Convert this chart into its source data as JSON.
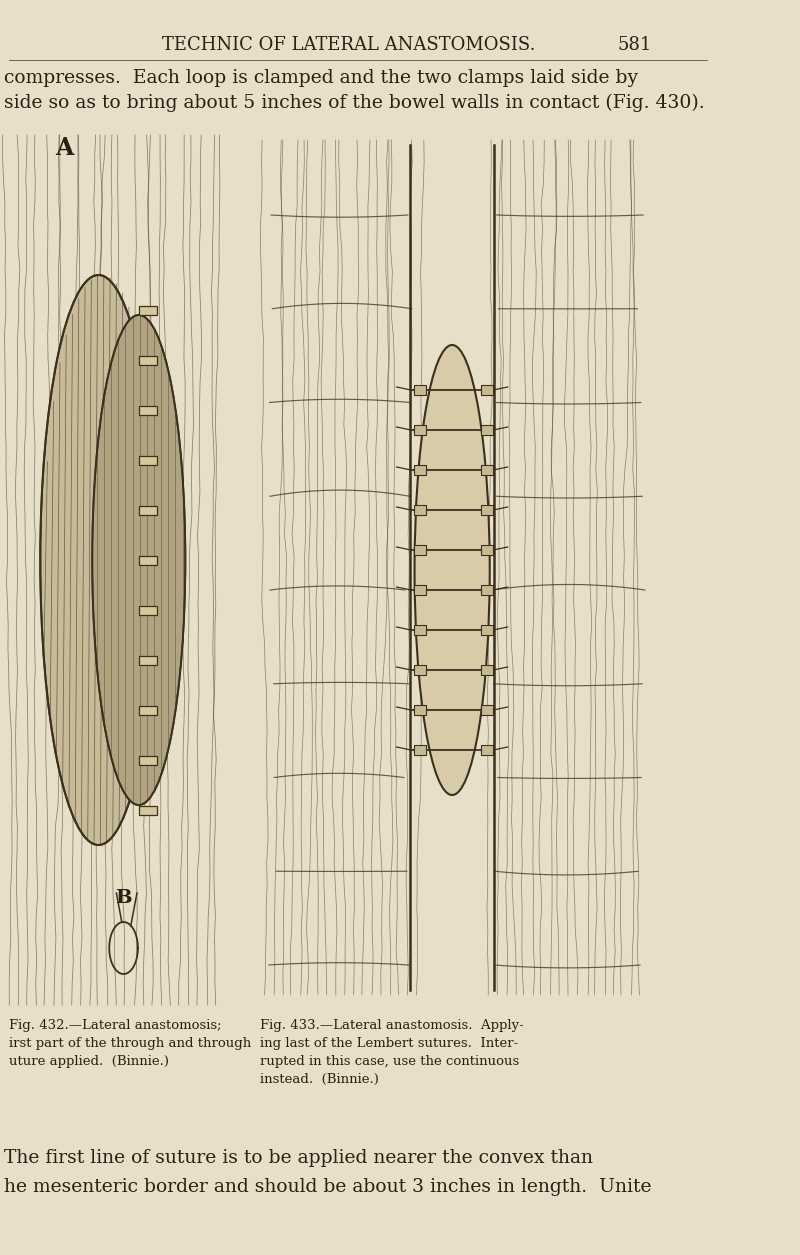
{
  "background_color": "#e8dfc8",
  "header_text": "TECHNIC OF LATERAL ANASTOMOSIS.",
  "header_page_num": "581",
  "header_fontsize": 13,
  "intro_text_line1": "compresses.  Each loop is clamped and the two clamps laid side by",
  "intro_text_line2": "side so as to bring about 5 inches of the bowel walls in contact (Fig. 430).",
  "caption_left_line1": "Fig. 432.—Lateral anastomosis;",
  "caption_left_line2": "irst part of the through and through",
  "caption_left_line3": "uture applied.  (Binnie.)",
  "caption_right_line1": "Fig. 433.—Lateral anastomosis.  Apply-",
  "caption_right_line2": "ing last of the Lembert sutures.  Inter-",
  "caption_right_line3": "rupted in this case, use the continuous",
  "caption_right_line4": "instead.  (Binnie.)",
  "footer_text_line1": "The first line of suture is to be applied nearer the convex than",
  "footer_text_line2": "he mesenteric border and should be about 3 inches in length.  Unite",
  "text_color": "#2a2015",
  "line_color": "#3a3020",
  "caption_fontsize": 9.5,
  "body_fontsize": 13.5
}
